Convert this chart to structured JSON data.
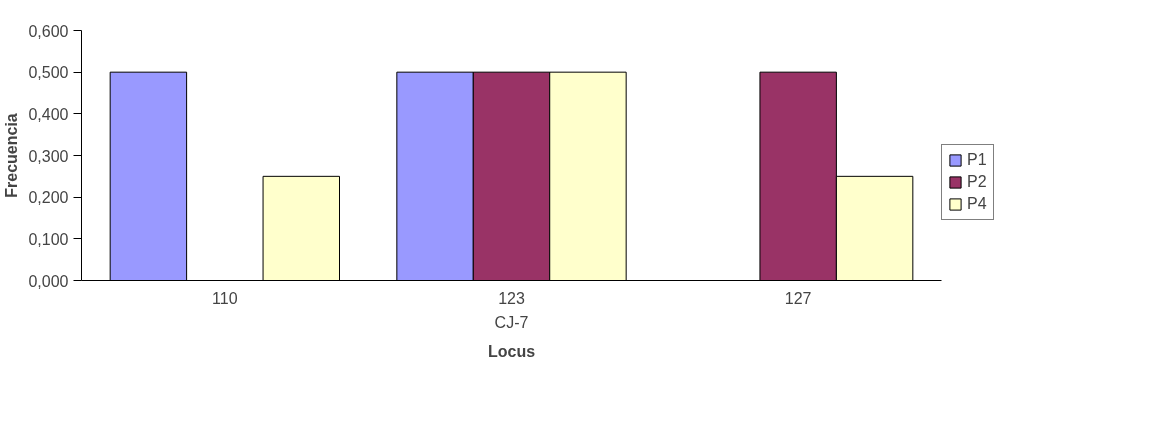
{
  "chart_data": {
    "type": "bar",
    "xlabel": "Locus",
    "ylabel": "Frecuencia",
    "categories": [
      "110",
      "123",
      "127"
    ],
    "series": [
      {
        "name": "P1",
        "color": "#9999ff",
        "values": [
          0.5,
          0.5,
          null
        ]
      },
      {
        "name": "P2",
        "color": "#993366",
        "values": [
          null,
          0.5,
          0.5
        ]
      },
      {
        "name": "P4",
        "color": "#ffffcc",
        "values": [
          0.25,
          0.5,
          0.25
        ]
      }
    ],
    "annotations": [
      "CJ-7"
    ],
    "ylim": [
      0,
      0.6
    ],
    "yticks": [
      {
        "value": 0,
        "label": "0,000"
      },
      {
        "value": 0.1,
        "label": "0,100"
      },
      {
        "value": 0.2,
        "label": "0,200"
      },
      {
        "value": 0.3,
        "label": "0,300"
      },
      {
        "value": 0.4,
        "label": "0,400"
      },
      {
        "value": 0.5,
        "label": "0,500"
      },
      {
        "value": 0.6,
        "label": "0,600"
      }
    ],
    "grid": false,
    "legend": "right"
  }
}
